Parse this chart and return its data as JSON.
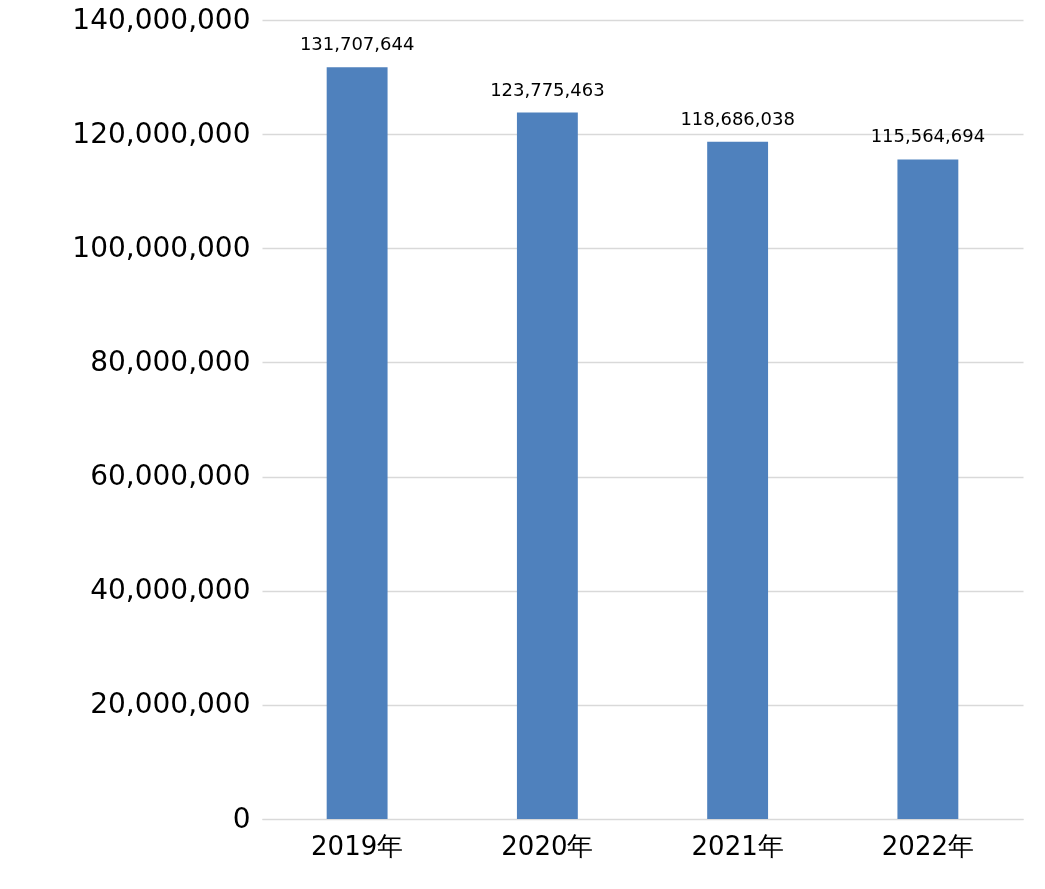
{
  "chart_data": {
    "type": "bar",
    "categories": [
      "2019年",
      "2020年",
      "2021年",
      "2022年"
    ],
    "values": [
      131707644,
      123775463,
      118686038,
      115564694
    ],
    "color": "#4f81bd",
    "ylim": [
      0,
      140000000
    ],
    "yticks": [
      {
        "value": 0,
        "label": "0"
      },
      {
        "value": 20000000,
        "label": "20,000,000"
      },
      {
        "value": 40000000,
        "label": "40,000,000"
      },
      {
        "value": 60000000,
        "label": "60,000,000"
      },
      {
        "value": 80000000,
        "label": "80,000,000"
      },
      {
        "value": 100000000,
        "label": "100,000,000"
      },
      {
        "value": 120000000,
        "label": "120,000,000"
      },
      {
        "value": 140000000,
        "label": "140,000,000"
      }
    ],
    "value_labels": [
      "131,707,644",
      "123,775,463",
      "118,686,038",
      "115,564,694"
    ],
    "grid": "y"
  }
}
